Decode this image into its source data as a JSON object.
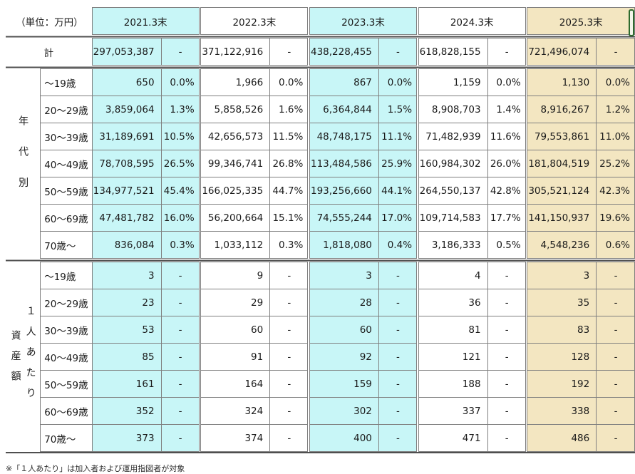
{
  "meta": {
    "unit_label": "（単位：万円）",
    "total_label": "計",
    "footnote": "※「１人あたり」は加入者および運用指図者が対象"
  },
  "colors": {
    "cyan": "#c8f6f7",
    "tan": "#f3e6c1",
    "border": "#7f7f7f",
    "separator": "#4f4f4f",
    "scrollbar_green": "#2e6b2e"
  },
  "year_columns": [
    {
      "label": "2021.3末",
      "theme": "cyan"
    },
    {
      "label": "2022.3末",
      "theme": "white"
    },
    {
      "label": "2023.3末",
      "theme": "cyan"
    },
    {
      "label": "2024.3末",
      "theme": "white"
    },
    {
      "label": "2025.3末",
      "theme": "tan"
    }
  ],
  "total_row": {
    "label": "計",
    "cells": [
      {
        "value": "297,053,387",
        "pct": "-"
      },
      {
        "value": "371,122,916",
        "pct": "-"
      },
      {
        "value": "438,228,455",
        "pct": "-"
      },
      {
        "value": "618,828,155",
        "pct": "-"
      },
      {
        "value": "721,496,074",
        "pct": "-"
      }
    ]
  },
  "sections": [
    {
      "label": "年代別",
      "label_vertical": [
        "年代別"
      ],
      "rows": [
        {
          "age": "～19歳",
          "cells": [
            {
              "value": "650",
              "pct": "0.0%"
            },
            {
              "value": "1,966",
              "pct": "0.0%"
            },
            {
              "value": "867",
              "pct": "0.0%"
            },
            {
              "value": "1,159",
              "pct": "0.0%"
            },
            {
              "value": "1,130",
              "pct": "0.0%"
            }
          ]
        },
        {
          "age": "20～29歳",
          "cells": [
            {
              "value": "3,859,064",
              "pct": "1.3%"
            },
            {
              "value": "5,858,526",
              "pct": "1.6%"
            },
            {
              "value": "6,364,844",
              "pct": "1.5%"
            },
            {
              "value": "8,908,703",
              "pct": "1.4%"
            },
            {
              "value": "8,916,267",
              "pct": "1.2%"
            }
          ]
        },
        {
          "age": "30～39歳",
          "cells": [
            {
              "value": "31,189,691",
              "pct": "10.5%"
            },
            {
              "value": "42,656,573",
              "pct": "11.5%"
            },
            {
              "value": "48,748,175",
              "pct": "11.1%"
            },
            {
              "value": "71,482,939",
              "pct": "11.6%"
            },
            {
              "value": "79,553,861",
              "pct": "11.0%"
            }
          ]
        },
        {
          "age": "40～49歳",
          "cells": [
            {
              "value": "78,708,595",
              "pct": "26.5%"
            },
            {
              "value": "99,346,741",
              "pct": "26.8%"
            },
            {
              "value": "113,484,586",
              "pct": "25.9%"
            },
            {
              "value": "160,984,302",
              "pct": "26.0%"
            },
            {
              "value": "181,804,519",
              "pct": "25.2%"
            }
          ]
        },
        {
          "age": "50～59歳",
          "cells": [
            {
              "value": "134,977,521",
              "pct": "45.4%"
            },
            {
              "value": "166,025,335",
              "pct": "44.7%"
            },
            {
              "value": "193,256,660",
              "pct": "44.1%"
            },
            {
              "value": "264,550,137",
              "pct": "42.8%"
            },
            {
              "value": "305,521,124",
              "pct": "42.3%"
            }
          ]
        },
        {
          "age": "60～69歳",
          "cells": [
            {
              "value": "47,481,782",
              "pct": "16.0%"
            },
            {
              "value": "56,200,664",
              "pct": "15.1%"
            },
            {
              "value": "74,555,244",
              "pct": "17.0%"
            },
            {
              "value": "109,714,583",
              "pct": "17.7%"
            },
            {
              "value": "141,150,937",
              "pct": "19.6%"
            }
          ]
        },
        {
          "age": "70歳～",
          "cells": [
            {
              "value": "836,084",
              "pct": "0.3%"
            },
            {
              "value": "1,033,112",
              "pct": "0.3%"
            },
            {
              "value": "1,818,080",
              "pct": "0.4%"
            },
            {
              "value": "3,186,333",
              "pct": "0.5%"
            },
            {
              "value": "4,548,236",
              "pct": "0.6%"
            }
          ]
        }
      ]
    },
    {
      "label": "１人あたり資産額",
      "label_vertical": [
        "１人あたり",
        "資産額"
      ],
      "rows": [
        {
          "age": "～19歳",
          "cells": [
            {
              "value": "3",
              "pct": "-"
            },
            {
              "value": "9",
              "pct": "-"
            },
            {
              "value": "3",
              "pct": "-"
            },
            {
              "value": "4",
              "pct": "-"
            },
            {
              "value": "3",
              "pct": "-"
            }
          ]
        },
        {
          "age": "20～29歳",
          "cells": [
            {
              "value": "23",
              "pct": "-"
            },
            {
              "value": "29",
              "pct": "-"
            },
            {
              "value": "28",
              "pct": "-"
            },
            {
              "value": "36",
              "pct": "-"
            },
            {
              "value": "35",
              "pct": "-"
            }
          ]
        },
        {
          "age": "30～39歳",
          "cells": [
            {
              "value": "53",
              "pct": "-"
            },
            {
              "value": "60",
              "pct": "-"
            },
            {
              "value": "60",
              "pct": "-"
            },
            {
              "value": "81",
              "pct": "-"
            },
            {
              "value": "83",
              "pct": "-"
            }
          ]
        },
        {
          "age": "40～49歳",
          "cells": [
            {
              "value": "85",
              "pct": "-"
            },
            {
              "value": "91",
              "pct": "-"
            },
            {
              "value": "92",
              "pct": "-"
            },
            {
              "value": "121",
              "pct": "-"
            },
            {
              "value": "128",
              "pct": "-"
            }
          ]
        },
        {
          "age": "50～59歳",
          "cells": [
            {
              "value": "161",
              "pct": "-"
            },
            {
              "value": "164",
              "pct": "-"
            },
            {
              "value": "159",
              "pct": "-"
            },
            {
              "value": "188",
              "pct": "-"
            },
            {
              "value": "192",
              "pct": "-"
            }
          ]
        },
        {
          "age": "60～69歳",
          "cells": [
            {
              "value": "352",
              "pct": "-"
            },
            {
              "value": "324",
              "pct": "-"
            },
            {
              "value": "302",
              "pct": "-"
            },
            {
              "value": "337",
              "pct": "-"
            },
            {
              "value": "338",
              "pct": "-"
            }
          ]
        },
        {
          "age": "70歳～",
          "cells": [
            {
              "value": "373",
              "pct": "-"
            },
            {
              "value": "374",
              "pct": "-"
            },
            {
              "value": "400",
              "pct": "-"
            },
            {
              "value": "471",
              "pct": "-"
            },
            {
              "value": "486",
              "pct": "-"
            }
          ]
        }
      ]
    }
  ]
}
